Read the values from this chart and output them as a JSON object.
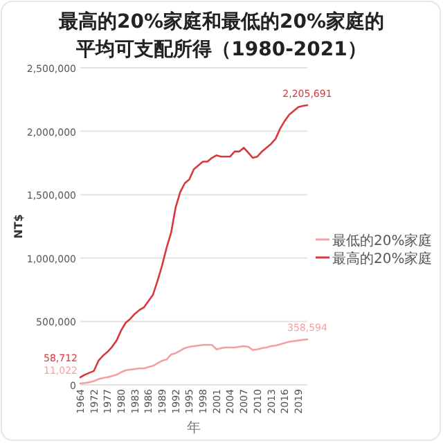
{
  "chart_data": {
    "type": "line",
    "title": "最高的20%家庭和最低的20%家庭的",
    "subtitle": "平均可支配所得（1980-2021）",
    "xlabel": "年",
    "ylabel": "NT$",
    "categories": [
      "1964",
      null,
      null,
      "1972",
      null,
      null,
      "1977",
      null,
      null,
      "1980",
      null,
      null,
      "1983",
      null,
      null,
      "1986",
      null,
      null,
      "1989",
      null,
      null,
      "1992",
      null,
      null,
      "1995",
      null,
      null,
      "1998",
      null,
      null,
      "2001",
      null,
      null,
      "2004",
      null,
      null,
      "2007",
      null,
      null,
      "2010",
      null,
      null,
      "2013",
      null,
      null,
      "2016",
      null,
      null,
      "2019",
      null,
      null
    ],
    "ylim": [
      0,
      2500000
    ],
    "yticks": [
      {
        "value": 0,
        "label": "0"
      },
      {
        "value": 500000,
        "label": "500,000"
      },
      {
        "value": 1000000,
        "label": "1,000,000"
      },
      {
        "value": 1500000,
        "label": "1,500,000"
      },
      {
        "value": 2000000,
        "label": "2,000,000"
      },
      {
        "value": 2500000,
        "label": "2,500,000"
      }
    ],
    "grid": "y",
    "legend": "right",
    "series": [
      {
        "name": "最低的20%家庭",
        "color": "#f4a0a0",
        "values": [
          11022,
          15000,
          20000,
          30000,
          45000,
          55000,
          60000,
          70000,
          80000,
          100000,
          115000,
          120000,
          125000,
          130000,
          130000,
          140000,
          150000,
          170000,
          190000,
          200000,
          240000,
          250000,
          270000,
          290000,
          300000,
          305000,
          310000,
          315000,
          315000,
          315000,
          280000,
          290000,
          295000,
          295000,
          295000,
          300000,
          305000,
          300000,
          275000,
          280000,
          290000,
          295000,
          305000,
          310000,
          320000,
          330000,
          340000,
          345000,
          350000,
          355000,
          358594
        ],
        "value_labels": [
          "11,022",
          null,
          null,
          null,
          null,
          null,
          null,
          null,
          null,
          null,
          null,
          null,
          null,
          null,
          null,
          null,
          null,
          null,
          null,
          null,
          null,
          null,
          null,
          null,
          null,
          null,
          null,
          null,
          null,
          null,
          null,
          null,
          null,
          null,
          null,
          null,
          null,
          null,
          null,
          null,
          null,
          null,
          null,
          null,
          null,
          null,
          null,
          null,
          null,
          null,
          "358,594"
        ]
      },
      {
        "name": "最高的20%家庭",
        "color": "#d9363e",
        "values": [
          58712,
          80000,
          95000,
          110000,
          190000,
          230000,
          260000,
          300000,
          350000,
          430000,
          490000,
          520000,
          560000,
          590000,
          610000,
          660000,
          710000,
          820000,
          940000,
          1080000,
          1200000,
          1400000,
          1520000,
          1590000,
          1620000,
          1700000,
          1730000,
          1760000,
          1760000,
          1790000,
          1810000,
          1800000,
          1800000,
          1800000,
          1840000,
          1840000,
          1870000,
          1830000,
          1790000,
          1800000,
          1840000,
          1870000,
          1900000,
          1940000,
          2020000,
          2080000,
          2130000,
          2160000,
          2190000,
          2200000,
          2205691
        ],
        "value_labels": [
          "58,712",
          null,
          null,
          null,
          null,
          null,
          null,
          null,
          null,
          null,
          null,
          null,
          null,
          null,
          null,
          null,
          null,
          null,
          null,
          null,
          null,
          null,
          null,
          null,
          null,
          null,
          null,
          null,
          null,
          null,
          null,
          null,
          null,
          null,
          null,
          null,
          null,
          null,
          null,
          null,
          null,
          null,
          null,
          null,
          null,
          null,
          null,
          null,
          null,
          null,
          "2,205,691"
        ]
      }
    ]
  }
}
